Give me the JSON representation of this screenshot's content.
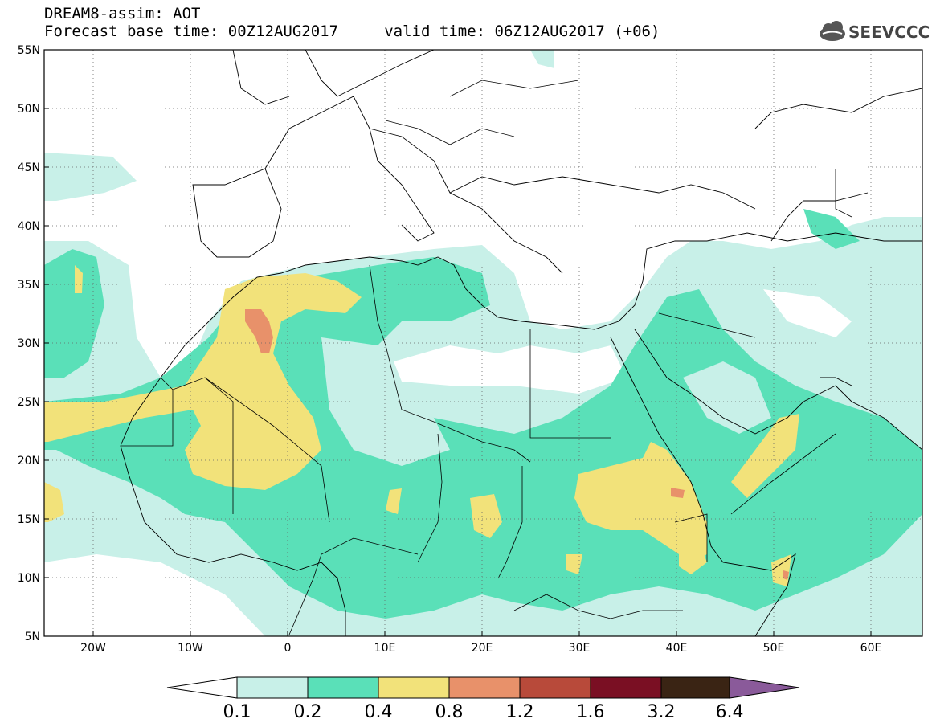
{
  "header": {
    "title_line1": "DREAM8-assim: AOT",
    "title_line2": "Forecast base time: 00Z12AUG2017     valid time: 06Z12AUG2017 (+06)",
    "logo_text": "SEEVCCC",
    "logo_icon": "cloud-icon"
  },
  "map": {
    "lat_labels": [
      "55N",
      "50N",
      "45N",
      "40N",
      "35N",
      "30N",
      "25N",
      "20N",
      "15N",
      "10N",
      "5N"
    ],
    "lon_labels": [
      "20W",
      "10W",
      "0",
      "10E",
      "20E",
      "30E",
      "40E",
      "50E",
      "60E"
    ],
    "lat_range": [
      5,
      55
    ],
    "lon_range": [
      -25,
      65
    ],
    "gridlines": "dotted"
  },
  "colorbar": {
    "colors": [
      "#ffffff",
      "#c8f0e8",
      "#5ae0b8",
      "#f2e27a",
      "#e8916a",
      "#b84a3a",
      "#7a0f23",
      "#3a2414",
      "#8a5a9a"
    ],
    "labels": [
      "0.1",
      "0.2",
      "0.4",
      "0.8",
      "1.2",
      "1.6",
      "3.2",
      "6.4"
    ]
  }
}
